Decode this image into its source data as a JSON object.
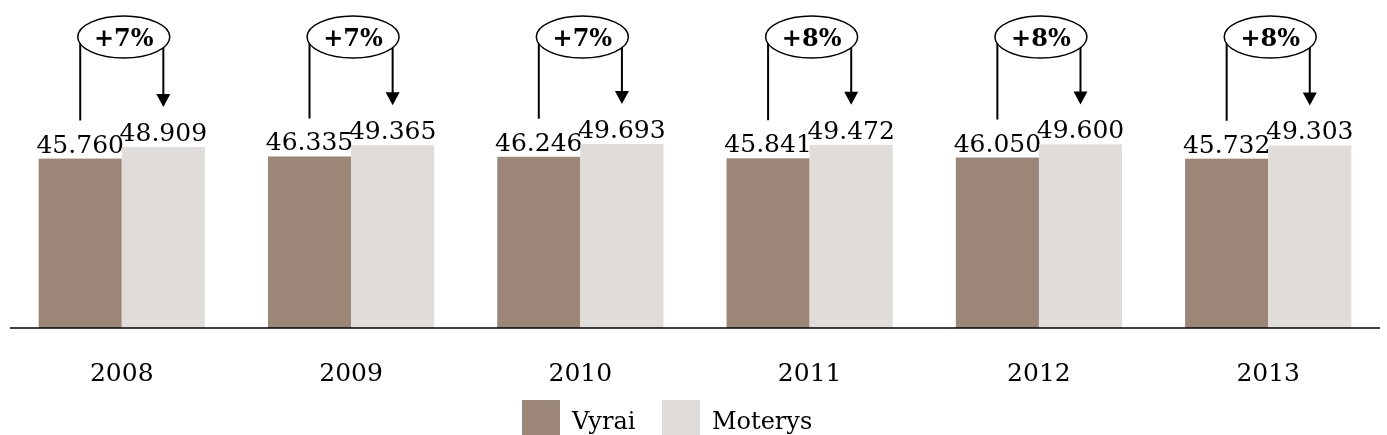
{
  "chart_data": {
    "type": "bar",
    "categories": [
      "2008",
      "2009",
      "2010",
      "2011",
      "2012",
      "2013"
    ],
    "series": [
      {
        "name": "Vyrai",
        "color": "#9c8678",
        "values": [
          45760,
          46335,
          46246,
          45841,
          46050,
          45732
        ],
        "value_labels": [
          "45.760",
          "46.335",
          "46.246",
          "45.841",
          "46.050",
          "45.732"
        ]
      },
      {
        "name": "Moterys",
        "color": "#e0dcd9",
        "values": [
          48909,
          49365,
          49693,
          49472,
          49600,
          49303
        ],
        "value_labels": [
          "48.909",
          "49.365",
          "49.693",
          "49.472",
          "49.600",
          "49.303"
        ]
      }
    ],
    "annotations": [
      "+7%",
      "+7%",
      "+7%",
      "+8%",
      "+8%",
      "+8%"
    ],
    "legend": "bottom"
  }
}
